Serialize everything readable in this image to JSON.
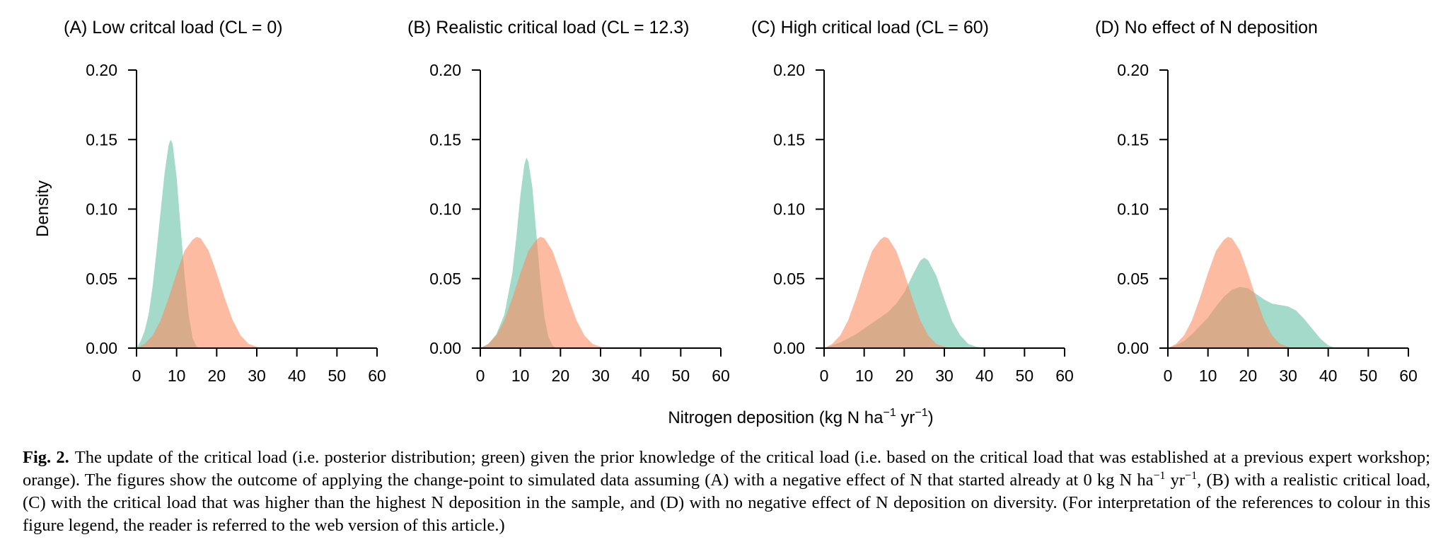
{
  "figure": {
    "xlabel": {
      "prefix": "Nitrogen deposition (kg N ha",
      "sup1": "−1",
      "middle": " yr",
      "sup2": "−1",
      "suffix": ")"
    },
    "ylabel": "Density"
  },
  "colors": {
    "posterior": "#66c2a5",
    "prior": "#fc8d62"
  },
  "chart_data": [
    {
      "type": "area",
      "title": "(A) Low critcal load (CL = 0)",
      "xlabel": "Nitrogen deposition (kg N ha−1 yr−1)",
      "ylabel": "Density",
      "xlim": [
        0,
        60
      ],
      "ylim": [
        0,
        0.2
      ],
      "xticks": [
        "0",
        "10",
        "20",
        "30",
        "40",
        "50",
        "60"
      ],
      "yticks": [
        "0.00",
        "0.05",
        "0.10",
        "0.15",
        "0.20"
      ],
      "series": [
        {
          "role": "prior",
          "color": "#fc8d62",
          "points": [
            [
              0,
              0
            ],
            [
              2,
              0.003
            ],
            [
              4,
              0.009
            ],
            [
              6,
              0.02
            ],
            [
              8,
              0.036
            ],
            [
              10,
              0.054
            ],
            [
              12,
              0.07
            ],
            [
              14,
              0.078
            ],
            [
              15,
              0.08
            ],
            [
              16,
              0.079
            ],
            [
              18,
              0.07
            ],
            [
              20,
              0.054
            ],
            [
              22,
              0.036
            ],
            [
              24,
              0.02
            ],
            [
              26,
              0.009
            ],
            [
              28,
              0.003
            ],
            [
              30,
              0.001
            ],
            [
              31,
              0
            ]
          ]
        },
        {
          "role": "posterior",
          "color": "#66c2a5",
          "points": [
            [
              0,
              0
            ],
            [
              1,
              0.005
            ],
            [
              2,
              0.012
            ],
            [
              3,
              0.024
            ],
            [
              4,
              0.044
            ],
            [
              5,
              0.07
            ],
            [
              6,
              0.098
            ],
            [
              7,
              0.126
            ],
            [
              8,
              0.146
            ],
            [
              8.5,
              0.15
            ],
            [
              9,
              0.147
            ],
            [
              10,
              0.123
            ],
            [
              11,
              0.087
            ],
            [
              12,
              0.052
            ],
            [
              13,
              0.024
            ],
            [
              14,
              0.007
            ],
            [
              15,
              0.001
            ],
            [
              16,
              0
            ]
          ]
        }
      ]
    },
    {
      "type": "area",
      "title": "(B) Realistic critical load (CL = 12.3)",
      "xlabel": "Nitrogen deposition (kg N ha−1 yr−1)",
      "ylabel": "Density",
      "xlim": [
        0,
        60
      ],
      "ylim": [
        0,
        0.2
      ],
      "xticks": [
        "0",
        "10",
        "20",
        "30",
        "40",
        "50",
        "60"
      ],
      "yticks": [
        "0.00",
        "0.05",
        "0.10",
        "0.15",
        "0.20"
      ],
      "series": [
        {
          "role": "prior",
          "color": "#fc8d62",
          "points": [
            [
              0,
              0
            ],
            [
              2,
              0.003
            ],
            [
              4,
              0.009
            ],
            [
              6,
              0.02
            ],
            [
              8,
              0.036
            ],
            [
              10,
              0.054
            ],
            [
              12,
              0.07
            ],
            [
              14,
              0.078
            ],
            [
              15,
              0.08
            ],
            [
              16,
              0.079
            ],
            [
              18,
              0.07
            ],
            [
              20,
              0.054
            ],
            [
              22,
              0.036
            ],
            [
              24,
              0.02
            ],
            [
              26,
              0.009
            ],
            [
              28,
              0.003
            ],
            [
              30,
              0.001
            ],
            [
              31,
              0
            ]
          ]
        },
        {
          "role": "posterior",
          "color": "#66c2a5",
          "points": [
            [
              0,
              0
            ],
            [
              2,
              0.003
            ],
            [
              4,
              0.01
            ],
            [
              6,
              0.024
            ],
            [
              8,
              0.054
            ],
            [
              9,
              0.08
            ],
            [
              10,
              0.11
            ],
            [
              11,
              0.132
            ],
            [
              11.5,
              0.137
            ],
            [
              12,
              0.134
            ],
            [
              13,
              0.115
            ],
            [
              14,
              0.082
            ],
            [
              15,
              0.048
            ],
            [
              16,
              0.022
            ],
            [
              17,
              0.008
            ],
            [
              18,
              0.002
            ],
            [
              19,
              0
            ]
          ]
        }
      ]
    },
    {
      "type": "area",
      "title": "(C) High critical load (CL = 60)",
      "xlabel": "Nitrogen deposition (kg N ha−1 yr−1)",
      "ylabel": "Density",
      "xlim": [
        0,
        60
      ],
      "ylim": [
        0,
        0.2
      ],
      "xticks": [
        "0",
        "10",
        "20",
        "30",
        "40",
        "50",
        "60"
      ],
      "yticks": [
        "0.00",
        "0.05",
        "0.10",
        "0.15",
        "0.20"
      ],
      "series": [
        {
          "role": "prior",
          "color": "#fc8d62",
          "points": [
            [
              0,
              0
            ],
            [
              2,
              0.003
            ],
            [
              4,
              0.009
            ],
            [
              6,
              0.02
            ],
            [
              8,
              0.036
            ],
            [
              10,
              0.054
            ],
            [
              12,
              0.07
            ],
            [
              14,
              0.078
            ],
            [
              15,
              0.08
            ],
            [
              16,
              0.079
            ],
            [
              18,
              0.07
            ],
            [
              20,
              0.054
            ],
            [
              22,
              0.036
            ],
            [
              24,
              0.02
            ],
            [
              26,
              0.009
            ],
            [
              28,
              0.003
            ],
            [
              30,
              0.001
            ],
            [
              31,
              0
            ]
          ]
        },
        {
          "role": "posterior",
          "color": "#66c2a5",
          "points": [
            [
              0,
              0
            ],
            [
              4,
              0.004
            ],
            [
              8,
              0.01
            ],
            [
              12,
              0.018
            ],
            [
              16,
              0.026
            ],
            [
              18,
              0.032
            ],
            [
              20,
              0.04
            ],
            [
              22,
              0.052
            ],
            [
              24,
              0.063
            ],
            [
              25,
              0.065
            ],
            [
              26,
              0.063
            ],
            [
              28,
              0.052
            ],
            [
              30,
              0.035
            ],
            [
              32,
              0.019
            ],
            [
              34,
              0.009
            ],
            [
              36,
              0.003
            ],
            [
              38,
              0.001
            ],
            [
              40,
              0
            ]
          ]
        }
      ]
    },
    {
      "type": "area",
      "title": "(D) No effect of N deposition",
      "xlabel": "Nitrogen deposition (kg N ha−1 yr−1)",
      "ylabel": "Density",
      "xlim": [
        0,
        60
      ],
      "ylim": [
        0,
        0.2
      ],
      "xticks": [
        "0",
        "10",
        "20",
        "30",
        "40",
        "50",
        "60"
      ],
      "yticks": [
        "0.00",
        "0.05",
        "0.10",
        "0.15",
        "0.20"
      ],
      "series": [
        {
          "role": "prior",
          "color": "#fc8d62",
          "points": [
            [
              0,
              0
            ],
            [
              2,
              0.003
            ],
            [
              4,
              0.009
            ],
            [
              6,
              0.02
            ],
            [
              8,
              0.036
            ],
            [
              10,
              0.054
            ],
            [
              12,
              0.07
            ],
            [
              14,
              0.078
            ],
            [
              15,
              0.08
            ],
            [
              16,
              0.079
            ],
            [
              18,
              0.07
            ],
            [
              20,
              0.054
            ],
            [
              22,
              0.036
            ],
            [
              24,
              0.02
            ],
            [
              26,
              0.009
            ],
            [
              28,
              0.003
            ],
            [
              30,
              0.001
            ],
            [
              31,
              0
            ]
          ]
        },
        {
          "role": "posterior",
          "color": "#66c2a5",
          "points": [
            [
              0,
              0
            ],
            [
              2,
              0.002
            ],
            [
              4,
              0.005
            ],
            [
              6,
              0.01
            ],
            [
              8,
              0.016
            ],
            [
              10,
              0.022
            ],
            [
              12,
              0.03
            ],
            [
              14,
              0.037
            ],
            [
              16,
              0.042
            ],
            [
              18,
              0.044
            ],
            [
              20,
              0.043
            ],
            [
              22,
              0.039
            ],
            [
              24,
              0.035
            ],
            [
              26,
              0.032
            ],
            [
              28,
              0.031
            ],
            [
              30,
              0.03
            ],
            [
              32,
              0.027
            ],
            [
              34,
              0.021
            ],
            [
              36,
              0.014
            ],
            [
              38,
              0.007
            ],
            [
              40,
              0.002
            ],
            [
              42,
              0
            ]
          ]
        }
      ]
    }
  ],
  "caption": {
    "label": "Fig. 2.",
    "part1": "The update of the critical load (i.e. posterior distribution; green) given the prior knowledge of the critical load (i.e. based on the critical load that was established at a previous expert workshop; orange). The figures show the outcome of applying the change-point to simulated data assuming (A) with a negative effect of N that started already at 0 kg N ha",
    "sup1": "−1",
    "part2": " yr",
    "sup2": "−1",
    "part3": ", (B) with a realistic critical load, (C) with the critical load that was higher than the highest N deposition in the sample, and (D) with no negative effect of N deposition on diversity. (For interpretation of the references to colour in this figure legend, the reader is referred to the web version of this article.)"
  }
}
